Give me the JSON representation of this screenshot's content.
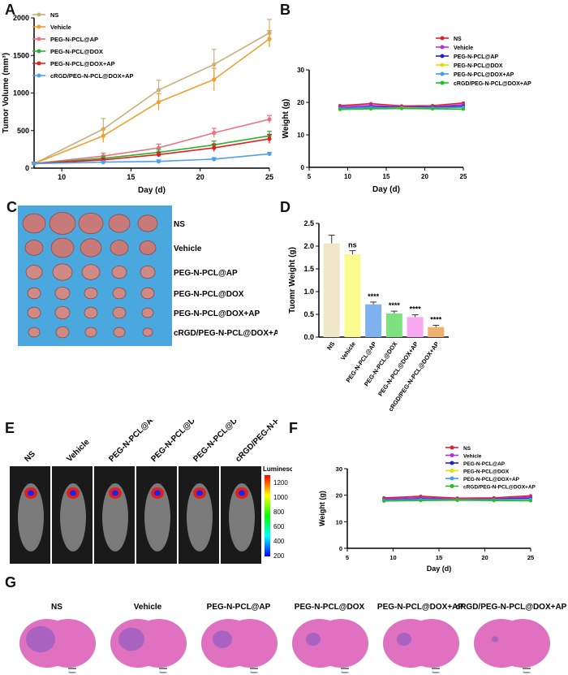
{
  "panels": {
    "A": "A",
    "B": "B",
    "C": "C",
    "D": "D",
    "E": "E",
    "F": "F",
    "G": "G"
  },
  "groups": [
    "NS",
    "Vehicle",
    "PEG-N-PCL@AP",
    "PEG-N-PCL@DOX",
    "PEG-N-PCL@DOX+AP",
    "cRGD/PEG-N-PCL@DOX+AP"
  ],
  "colors": {
    "NS": "#c8b07a",
    "Vehicle": "#f0a030",
    "PEG-N-PCL@AP": "#f07080",
    "PEG-N-PCL@DOX": "#30b030",
    "PEG-N-PCL@DOX+AP": "#e02020",
    "cRGD/PEG-N-PCL@DOX+AP": "#50a0f0",
    "B_NS": "#e02030",
    "B_Vehicle": "#b030e0",
    "B_AP": "#2020d0",
    "B_DOX": "#e0e000",
    "B_DOXAP": "#40a0e0",
    "B_cRGD": "#20c020",
    "photo_bg": "#4aa8df",
    "he_pink": "#e070c0",
    "bar_NS": "#efe7c8",
    "bar_Vehicle": "#fafa90",
    "bar_AP": "#7fb0f0",
    "bar_DOX": "#7fe07f",
    "bar_DOXAP": "#f8a8f0",
    "bar_cRGD": "#f0b070"
  },
  "chart_data": [
    {
      "panel": "A",
      "type": "line",
      "xlabel": "Day (d)",
      "ylabel": "Tumor Volume (mm³)",
      "xlim": [
        8,
        25
      ],
      "ylim": [
        0,
        2000
      ],
      "xticks": [
        "10",
        "15",
        "20",
        "25"
      ],
      "yticks": [
        "0",
        "500",
        "1000",
        "1500",
        "2000"
      ],
      "x": [
        8,
        13,
        17,
        21,
        25
      ],
      "legend_loc": "top-left",
      "series": [
        {
          "name": "NS",
          "values": [
            60,
            520,
            1040,
            1380,
            1800
          ],
          "err": [
            20,
            140,
            130,
            200,
            180
          ],
          "marker": "square"
        },
        {
          "name": "Vehicle",
          "values": [
            60,
            430,
            880,
            1180,
            1720
          ],
          "err": [
            20,
            90,
            110,
            150,
            110
          ],
          "marker": "circle"
        },
        {
          "name": "PEG-N-PCL@AP",
          "values": [
            60,
            160,
            270,
            470,
            650
          ],
          "err": [
            15,
            40,
            50,
            60,
            50
          ],
          "marker": "circle"
        },
        {
          "name": "PEG-N-PCL@DOX",
          "values": [
            60,
            130,
            210,
            310,
            430
          ],
          "err": [
            15,
            30,
            40,
            50,
            60
          ],
          "marker": "triangle"
        },
        {
          "name": "PEG-N-PCL@DOX+AP",
          "values": [
            60,
            110,
            180,
            270,
            390
          ],
          "err": [
            15,
            25,
            30,
            50,
            60
          ],
          "marker": "diamond"
        },
        {
          "name": "cRGD/PEG-N-PCL@DOX+AP",
          "values": [
            60,
            80,
            90,
            120,
            190
          ],
          "err": [
            10,
            15,
            20,
            20,
            20
          ],
          "marker": "triangle-down"
        }
      ]
    },
    {
      "panel": "B",
      "type": "line",
      "xlabel": "Day (d)",
      "ylabel": "Weight (g)",
      "xlim": [
        5,
        25
      ],
      "ylim": [
        0,
        30
      ],
      "xticks": [
        "5",
        "10",
        "15",
        "20",
        "25"
      ],
      "yticks": [
        "0",
        "10",
        "20",
        "30"
      ],
      "x": [
        9,
        13,
        17,
        21,
        25
      ],
      "legend_loc": "top-right",
      "series": [
        {
          "name": "NS",
          "values": [
            19.0,
            19.6,
            18.9,
            19.0,
            19.8
          ]
        },
        {
          "name": "Vehicle",
          "values": [
            18.6,
            19.1,
            18.5,
            18.6,
            19.3
          ]
        },
        {
          "name": "PEG-N-PCL@AP",
          "values": [
            18.2,
            18.6,
            18.4,
            18.5,
            18.8
          ]
        },
        {
          "name": "PEG-N-PCL@DOX",
          "values": [
            18.0,
            18.3,
            18.3,
            18.3,
            18.4
          ]
        },
        {
          "name": "PEG-N-PCL@DOX+AP",
          "values": [
            18.1,
            18.4,
            18.2,
            18.3,
            18.5
          ]
        },
        {
          "name": "cRGD/PEG-N-PCL@DOX+AP",
          "values": [
            17.8,
            18.0,
            18.1,
            18.0,
            17.9
          ]
        }
      ]
    },
    {
      "panel": "D",
      "type": "bar",
      "ylabel": "Tuomr Weight (g)",
      "ylim": [
        0,
        2.5
      ],
      "yticks": [
        "0.0",
        "0.5",
        "1.0",
        "1.5",
        "2.0",
        "2.5"
      ],
      "categories": [
        "NS",
        "Vehicle",
        "PEG-N-PCL@AP",
        "PEG-N-PCL@DOX",
        "PEG-N-PCL@DOX+AP",
        "cRGD/PEG-N-PCL@DOX+AP"
      ],
      "values": [
        2.06,
        1.82,
        0.72,
        0.52,
        0.44,
        0.22
      ],
      "err": [
        0.18,
        0.08,
        0.05,
        0.05,
        0.05,
        0.04
      ],
      "annotations": [
        "",
        "ns",
        "****",
        "****",
        "****",
        "****"
      ]
    },
    {
      "panel": "F",
      "type": "line",
      "xlabel": "Day (d)",
      "ylabel": "Weight (g)",
      "xlim": [
        5,
        25
      ],
      "ylim": [
        0,
        30
      ],
      "xticks": [
        "5",
        "10",
        "15",
        "20",
        "25"
      ],
      "yticks": [
        "0",
        "10",
        "20",
        "30"
      ],
      "x": [
        9,
        13,
        17,
        21,
        25
      ],
      "legend_loc": "top-right",
      "series": [
        {
          "name": "NS",
          "values": [
            19.0,
            19.6,
            18.9,
            19.0,
            19.8
          ]
        },
        {
          "name": "Vehicle",
          "values": [
            18.6,
            19.1,
            18.5,
            18.6,
            19.3
          ]
        },
        {
          "name": "PEG-N-PCL@AP",
          "values": [
            18.2,
            18.6,
            18.4,
            18.5,
            18.8
          ]
        },
        {
          "name": "PEG-N-PCL@DOX",
          "values": [
            18.0,
            18.3,
            18.3,
            18.3,
            18.4
          ]
        },
        {
          "name": "PEG-N-PCL@DOX+AP",
          "values": [
            18.1,
            18.4,
            18.2,
            18.3,
            18.5
          ]
        },
        {
          "name": "cRGD/PEG-N-PCL@DOX+AP",
          "values": [
            17.8,
            18.0,
            18.1,
            18.0,
            17.9
          ]
        }
      ]
    }
  ],
  "photo_labels": [
    "NS",
    "Vehicle",
    "PEG-N-PCL@AP",
    "PEG-N-PCL@DOX",
    "PEG-N-PCL@DOX+AP",
    "cRGD/PEG-N-PCL@DOX+AP"
  ],
  "imaging": {
    "labels": [
      "NS",
      "Vehicle",
      "PEG-N-PCL@AP",
      "PEG-N-PCL@DOX",
      "PEG-N-PCL@DOX+AP",
      "cRGD/PEG-N-PCL@DOX+AP"
    ],
    "colorbar_title": "Luminescence",
    "colorbar_ticks": [
      "1200",
      "1000",
      "800",
      "600",
      "400",
      "200"
    ]
  },
  "histology": {
    "labels": [
      "NS",
      "Vehicle",
      "PEG-N-PCL@AP",
      "PEG-N-PCL@DOX",
      "PEG-N-PCL@DOX+AP",
      "cRGD/PEG-N-PCL@DOX+AP"
    ],
    "scale_label": "5mm"
  }
}
